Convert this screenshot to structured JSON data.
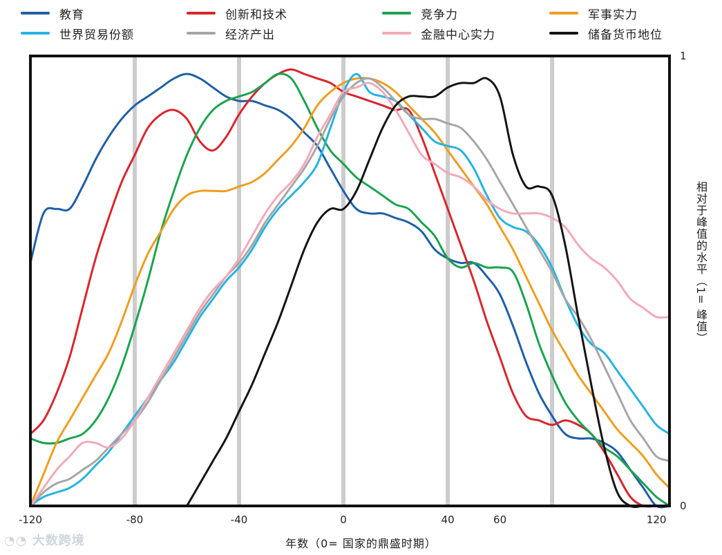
{
  "chart_data": {
    "type": "line",
    "xlabel": "年数（0= 国家的鼎盛时期）",
    "ylabel": "相对于峰值的水平（1= 峰值）",
    "xlim": [
      -120,
      125
    ],
    "ylim": [
      0,
      1
    ],
    "x_ticks": [
      -120,
      -80,
      -40,
      0,
      40,
      60,
      120
    ],
    "x_tick_labels": [
      "-120",
      "-80",
      "-40",
      "0",
      "40",
      "60",
      "120"
    ],
    "y_tick_labels": [
      "0",
      "1"
    ],
    "vertical_gridlines": [
      -80,
      -40,
      0,
      40,
      80
    ],
    "grid": "vertical bands",
    "legend_position": "top",
    "series": [
      {
        "name": "教育",
        "color": "#1f5fa6",
        "x": [
          -120,
          -115,
          -110,
          -105,
          -100,
          -95,
          -90,
          -85,
          -80,
          -75,
          -70,
          -65,
          -60,
          -55,
          -50,
          -45,
          -40,
          -35,
          -30,
          -25,
          -20,
          -15,
          -10,
          -5,
          0,
          5,
          10,
          15,
          20,
          25,
          30,
          35,
          40,
          45,
          50,
          55,
          60,
          65,
          70,
          75,
          80,
          85,
          90,
          95,
          100,
          105,
          110,
          115,
          120,
          125
        ],
        "y": [
          0.54,
          0.65,
          0.66,
          0.66,
          0.71,
          0.77,
          0.82,
          0.86,
          0.89,
          0.91,
          0.93,
          0.95,
          0.96,
          0.95,
          0.93,
          0.91,
          0.9,
          0.9,
          0.89,
          0.88,
          0.86,
          0.83,
          0.8,
          0.75,
          0.7,
          0.66,
          0.65,
          0.65,
          0.64,
          0.63,
          0.61,
          0.57,
          0.55,
          0.54,
          0.54,
          0.51,
          0.47,
          0.4,
          0.32,
          0.25,
          0.2,
          0.16,
          0.15,
          0.15,
          0.14,
          0.12,
          0.08,
          0.04,
          0.0,
          0.0
        ]
      },
      {
        "name": "创新和技术",
        "color": "#d7262d",
        "x": [
          -120,
          -115,
          -110,
          -105,
          -100,
          -95,
          -90,
          -85,
          -80,
          -75,
          -70,
          -65,
          -60,
          -55,
          -50,
          -45,
          -40,
          -35,
          -30,
          -25,
          -20,
          -15,
          -10,
          -5,
          0,
          5,
          10,
          15,
          20,
          25,
          30,
          35,
          40,
          45,
          50,
          55,
          60,
          65,
          70,
          75,
          80,
          85,
          90,
          95,
          100,
          105,
          110,
          115,
          120,
          125
        ],
        "y": [
          0.16,
          0.19,
          0.25,
          0.33,
          0.44,
          0.55,
          0.64,
          0.72,
          0.78,
          0.84,
          0.87,
          0.88,
          0.86,
          0.81,
          0.79,
          0.82,
          0.87,
          0.91,
          0.94,
          0.96,
          0.97,
          0.96,
          0.95,
          0.94,
          0.92,
          0.91,
          0.9,
          0.89,
          0.88,
          0.88,
          0.82,
          0.74,
          0.66,
          0.58,
          0.5,
          0.41,
          0.33,
          0.25,
          0.2,
          0.19,
          0.18,
          0.19,
          0.18,
          0.16,
          0.12,
          0.07,
          0.02,
          0.0,
          0.0,
          0.0
        ]
      },
      {
        "name": "竞争力",
        "color": "#1aa34f",
        "x": [
          -120,
          -115,
          -110,
          -105,
          -100,
          -95,
          -90,
          -85,
          -80,
          -75,
          -70,
          -65,
          -60,
          -55,
          -50,
          -45,
          -40,
          -35,
          -30,
          -25,
          -20,
          -15,
          -10,
          -5,
          0,
          5,
          10,
          15,
          20,
          25,
          30,
          35,
          40,
          45,
          50,
          55,
          60,
          65,
          70,
          75,
          80,
          85,
          90,
          95,
          100,
          105,
          110,
          115,
          120,
          125
        ],
        "y": [
          0.15,
          0.14,
          0.14,
          0.15,
          0.16,
          0.19,
          0.24,
          0.31,
          0.4,
          0.5,
          0.61,
          0.7,
          0.78,
          0.84,
          0.88,
          0.9,
          0.91,
          0.92,
          0.94,
          0.96,
          0.95,
          0.9,
          0.84,
          0.79,
          0.76,
          0.73,
          0.71,
          0.69,
          0.67,
          0.66,
          0.63,
          0.6,
          0.55,
          0.53,
          0.54,
          0.53,
          0.53,
          0.52,
          0.45,
          0.36,
          0.29,
          0.23,
          0.19,
          0.16,
          0.13,
          0.11,
          0.08,
          0.05,
          0.02,
          0.0
        ]
      },
      {
        "name": "军事实力",
        "color": "#ef9d1f",
        "x": [
          -120,
          -115,
          -110,
          -105,
          -100,
          -95,
          -90,
          -85,
          -80,
          -75,
          -70,
          -65,
          -60,
          -55,
          -50,
          -45,
          -40,
          -35,
          -30,
          -25,
          -20,
          -15,
          -10,
          -5,
          0,
          5,
          10,
          15,
          20,
          25,
          30,
          35,
          40,
          45,
          50,
          55,
          60,
          65,
          70,
          75,
          80,
          85,
          90,
          95,
          100,
          105,
          110,
          115,
          120,
          125
        ],
        "y": [
          0.0,
          0.07,
          0.14,
          0.19,
          0.24,
          0.29,
          0.34,
          0.41,
          0.49,
          0.56,
          0.61,
          0.66,
          0.69,
          0.7,
          0.7,
          0.7,
          0.71,
          0.72,
          0.74,
          0.77,
          0.8,
          0.84,
          0.89,
          0.92,
          0.94,
          0.95,
          0.95,
          0.94,
          0.92,
          0.89,
          0.86,
          0.83,
          0.79,
          0.75,
          0.71,
          0.67,
          0.62,
          0.57,
          0.51,
          0.45,
          0.39,
          0.34,
          0.29,
          0.25,
          0.21,
          0.17,
          0.14,
          0.11,
          0.07,
          0.04
        ]
      },
      {
        "name": "世界贸易份额",
        "color": "#27b3e2",
        "x": [
          -120,
          -115,
          -110,
          -105,
          -100,
          -95,
          -90,
          -85,
          -80,
          -75,
          -70,
          -65,
          -60,
          -55,
          -50,
          -45,
          -40,
          -35,
          -30,
          -25,
          -20,
          -15,
          -10,
          -5,
          0,
          5,
          10,
          15,
          20,
          25,
          30,
          35,
          40,
          45,
          50,
          55,
          60,
          65,
          70,
          75,
          80,
          85,
          90,
          95,
          100,
          105,
          110,
          115,
          120,
          125
        ],
        "y": [
          0.0,
          0.02,
          0.03,
          0.04,
          0.06,
          0.09,
          0.12,
          0.16,
          0.2,
          0.24,
          0.28,
          0.32,
          0.37,
          0.42,
          0.46,
          0.5,
          0.53,
          0.57,
          0.62,
          0.66,
          0.69,
          0.72,
          0.76,
          0.84,
          0.92,
          0.96,
          0.92,
          0.91,
          0.9,
          0.87,
          0.84,
          0.81,
          0.8,
          0.79,
          0.75,
          0.69,
          0.64,
          0.62,
          0.61,
          0.58,
          0.53,
          0.46,
          0.4,
          0.36,
          0.34,
          0.3,
          0.26,
          0.22,
          0.18,
          0.16
        ]
      },
      {
        "name": "经济产出",
        "color": "#a6a6a6",
        "x": [
          -120,
          -115,
          -110,
          -105,
          -100,
          -95,
          -90,
          -85,
          -80,
          -75,
          -70,
          -65,
          -60,
          -55,
          -50,
          -45,
          -40,
          -35,
          -30,
          -25,
          -20,
          -15,
          -10,
          -5,
          0,
          5,
          10,
          15,
          20,
          25,
          30,
          35,
          40,
          45,
          50,
          55,
          60,
          65,
          70,
          75,
          80,
          85,
          90,
          95,
          100,
          105,
          110,
          115,
          120,
          125
        ],
        "y": [
          0.0,
          0.03,
          0.05,
          0.06,
          0.08,
          0.1,
          0.13,
          0.16,
          0.19,
          0.23,
          0.28,
          0.33,
          0.38,
          0.43,
          0.47,
          0.51,
          0.54,
          0.58,
          0.63,
          0.67,
          0.71,
          0.75,
          0.8,
          0.86,
          0.91,
          0.94,
          0.95,
          0.93,
          0.9,
          0.87,
          0.86,
          0.86,
          0.85,
          0.84,
          0.81,
          0.77,
          0.72,
          0.67,
          0.62,
          0.57,
          0.52,
          0.46,
          0.42,
          0.37,
          0.31,
          0.25,
          0.19,
          0.15,
          0.11,
          0.1
        ]
      },
      {
        "name": "金融中心实力",
        "color": "#f2a9b8",
        "x": [
          -120,
          -115,
          -110,
          -105,
          -100,
          -95,
          -90,
          -85,
          -80,
          -75,
          -70,
          -65,
          -60,
          -55,
          -50,
          -45,
          -40,
          -35,
          -30,
          -25,
          -20,
          -15,
          -10,
          -5,
          0,
          5,
          10,
          15,
          20,
          25,
          30,
          35,
          40,
          45,
          50,
          55,
          60,
          65,
          70,
          75,
          80,
          85,
          90,
          95,
          100,
          105,
          110,
          115,
          120,
          125
        ],
        "y": [
          0.0,
          0.04,
          0.08,
          0.11,
          0.14,
          0.14,
          0.13,
          0.15,
          0.19,
          0.24,
          0.29,
          0.34,
          0.39,
          0.44,
          0.48,
          0.51,
          0.55,
          0.6,
          0.65,
          0.69,
          0.72,
          0.76,
          0.82,
          0.87,
          0.92,
          0.93,
          0.94,
          0.92,
          0.88,
          0.83,
          0.78,
          0.76,
          0.74,
          0.73,
          0.71,
          0.68,
          0.66,
          0.65,
          0.65,
          0.65,
          0.64,
          0.62,
          0.58,
          0.55,
          0.53,
          0.5,
          0.46,
          0.44,
          0.42,
          0.42
        ]
      },
      {
        "name": "储备货币地位",
        "color": "#141414",
        "x": [
          -60,
          -55,
          -50,
          -45,
          -40,
          -35,
          -30,
          -25,
          -20,
          -15,
          -10,
          -5,
          0,
          5,
          10,
          15,
          20,
          25,
          30,
          35,
          40,
          45,
          50,
          55,
          60,
          65,
          70,
          75,
          80,
          85,
          90,
          95,
          100,
          105,
          110,
          115,
          120
        ],
        "y": [
          0.0,
          0.05,
          0.1,
          0.15,
          0.21,
          0.27,
          0.34,
          0.41,
          0.49,
          0.57,
          0.63,
          0.66,
          0.66,
          0.7,
          0.77,
          0.84,
          0.89,
          0.91,
          0.91,
          0.91,
          0.93,
          0.94,
          0.94,
          0.95,
          0.91,
          0.78,
          0.71,
          0.71,
          0.69,
          0.58,
          0.42,
          0.27,
          0.13,
          0.03,
          0.0,
          0.0,
          0.0
        ]
      }
    ]
  },
  "watermark": "大数跨境"
}
